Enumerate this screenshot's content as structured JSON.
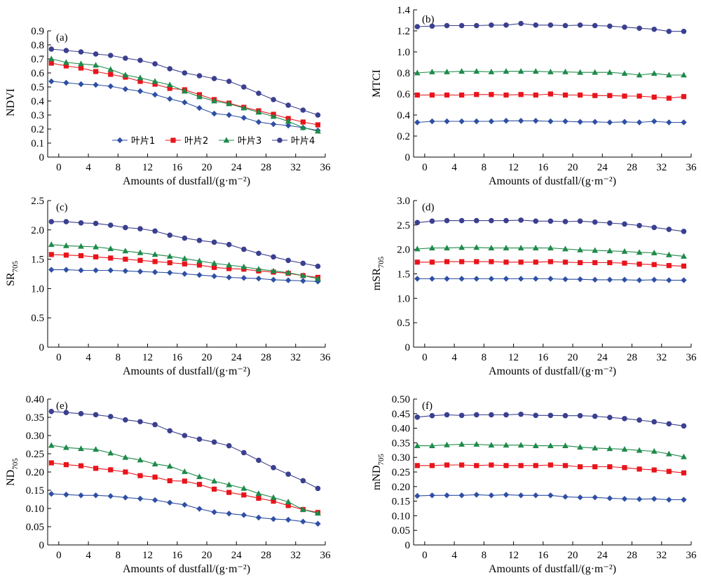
{
  "colors": {
    "叶片1": "#2e4fa3",
    "叶片2": "#e8141b",
    "叶片3": "#1e8a4a",
    "叶片4": "#3b3f8f"
  },
  "legend": [
    "叶片1",
    "叶片2",
    "叶片3",
    "叶片4"
  ],
  "chart_data": [
    {
      "id": "a",
      "panel_label": "(a)",
      "type": "line",
      "ylabel": "NDVI",
      "ylabel_sub": "",
      "xlabel": "Amounts of dustfall/(g·m⁻²)",
      "xlim": [
        -1.5,
        36
      ],
      "xticks": [
        0,
        4,
        8,
        12,
        16,
        20,
        24,
        28,
        32,
        36
      ],
      "ylim": [
        0,
        0.9
      ],
      "yticks": [
        0,
        0.1,
        0.2,
        0.3,
        0.4,
        0.5,
        0.6,
        0.7,
        0.8,
        0.9
      ],
      "ytick_labels": [
        "0",
        "0.1",
        "0.2",
        "0.3",
        "0.4",
        "0.5",
        "0.6",
        "0.7",
        "0.8",
        "0.9"
      ],
      "legend": true,
      "x": [
        -1,
        1,
        3,
        5,
        7,
        9,
        11,
        13,
        15,
        17,
        19,
        21,
        23,
        25,
        27,
        29,
        31,
        33,
        35
      ],
      "series": [
        {
          "name": "叶片1",
          "marker": "diamond",
          "values": [
            0.54,
            0.53,
            0.52,
            0.515,
            0.505,
            0.485,
            0.47,
            0.445,
            0.415,
            0.39,
            0.35,
            0.31,
            0.3,
            0.28,
            0.25,
            0.235,
            0.225,
            0.21,
            0.19
          ]
        },
        {
          "name": "叶片2",
          "marker": "square",
          "values": [
            0.67,
            0.65,
            0.635,
            0.61,
            0.59,
            0.57,
            0.54,
            0.52,
            0.49,
            0.48,
            0.445,
            0.41,
            0.385,
            0.355,
            0.33,
            0.305,
            0.275,
            0.25,
            0.23
          ]
        },
        {
          "name": "叶片3",
          "marker": "triangle",
          "values": [
            0.7,
            0.675,
            0.665,
            0.655,
            0.625,
            0.585,
            0.565,
            0.54,
            0.515,
            0.47,
            0.43,
            0.4,
            0.38,
            0.35,
            0.32,
            0.29,
            0.255,
            0.21,
            0.185
          ]
        },
        {
          "name": "叶片4",
          "marker": "circle",
          "values": [
            0.77,
            0.76,
            0.75,
            0.735,
            0.725,
            0.705,
            0.69,
            0.665,
            0.63,
            0.6,
            0.58,
            0.56,
            0.54,
            0.5,
            0.455,
            0.41,
            0.37,
            0.335,
            0.3
          ]
        }
      ]
    },
    {
      "id": "b",
      "panel_label": "(b)",
      "type": "line",
      "ylabel": "MTCI",
      "ylabel_sub": "",
      "xlabel": "Amounts of dustfall/(g·m⁻²)",
      "xlim": [
        -1.5,
        36
      ],
      "xticks": [
        0,
        4,
        8,
        12,
        16,
        20,
        24,
        28,
        32,
        36
      ],
      "ylim": [
        0,
        1.4
      ],
      "yticks": [
        0,
        0.2,
        0.4,
        0.6,
        0.8,
        1.0,
        1.2,
        1.4
      ],
      "ytick_labels": [
        "0",
        "0.2",
        "0.4",
        "0.6",
        "0.8",
        "1.0",
        "1.2",
        "1.4"
      ],
      "legend": false,
      "x": [
        -1,
        1,
        3,
        5,
        7,
        9,
        11,
        13,
        15,
        17,
        19,
        21,
        23,
        25,
        27,
        29,
        31,
        33,
        35
      ],
      "series": [
        {
          "name": "叶片1",
          "marker": "diamond",
          "values": [
            0.33,
            0.34,
            0.34,
            0.34,
            0.34,
            0.34,
            0.345,
            0.345,
            0.345,
            0.34,
            0.34,
            0.335,
            0.335,
            0.33,
            0.335,
            0.33,
            0.34,
            0.33,
            0.33
          ]
        },
        {
          "name": "叶片2",
          "marker": "square",
          "values": [
            0.59,
            0.59,
            0.59,
            0.59,
            0.595,
            0.595,
            0.59,
            0.595,
            0.59,
            0.6,
            0.59,
            0.59,
            0.585,
            0.585,
            0.58,
            0.58,
            0.57,
            0.56,
            0.575
          ]
        },
        {
          "name": "叶片3",
          "marker": "triangle",
          "values": [
            0.8,
            0.81,
            0.81,
            0.815,
            0.815,
            0.81,
            0.815,
            0.815,
            0.815,
            0.81,
            0.81,
            0.805,
            0.805,
            0.805,
            0.795,
            0.78,
            0.795,
            0.78,
            0.78
          ]
        },
        {
          "name": "叶片4",
          "marker": "circle",
          "values": [
            1.24,
            1.245,
            1.25,
            1.25,
            1.25,
            1.255,
            1.255,
            1.27,
            1.255,
            1.255,
            1.25,
            1.255,
            1.25,
            1.245,
            1.235,
            1.225,
            1.215,
            1.195,
            1.195
          ]
        }
      ]
    },
    {
      "id": "c",
      "panel_label": "(c)",
      "type": "line",
      "ylabel": "SR",
      "ylabel_sub": "705",
      "xlabel": "Amounts of dustfall/(g·m⁻²)",
      "xlim": [
        -1.5,
        36
      ],
      "xticks": [
        0,
        4,
        8,
        12,
        16,
        20,
        24,
        28,
        32,
        36
      ],
      "ylim": [
        0,
        2.5
      ],
      "yticks": [
        0,
        0.5,
        1.0,
        1.5,
        2.0,
        2.5
      ],
      "ytick_labels": [
        "0",
        "0.5",
        "1.0",
        "1.5",
        "2.0",
        "2.5"
      ],
      "legend": false,
      "x": [
        -1,
        1,
        3,
        5,
        7,
        9,
        11,
        13,
        15,
        17,
        19,
        21,
        23,
        25,
        27,
        29,
        31,
        33,
        35
      ],
      "series": [
        {
          "name": "叶片1",
          "marker": "diamond",
          "values": [
            1.32,
            1.32,
            1.31,
            1.31,
            1.31,
            1.3,
            1.29,
            1.28,
            1.27,
            1.25,
            1.23,
            1.21,
            1.19,
            1.18,
            1.17,
            1.15,
            1.14,
            1.13,
            1.12
          ]
        },
        {
          "name": "叶片2",
          "marker": "square",
          "values": [
            1.58,
            1.57,
            1.56,
            1.54,
            1.52,
            1.5,
            1.48,
            1.46,
            1.44,
            1.42,
            1.4,
            1.36,
            1.34,
            1.33,
            1.3,
            1.28,
            1.26,
            1.22,
            1.19
          ]
        },
        {
          "name": "叶片3",
          "marker": "triangle",
          "values": [
            1.75,
            1.73,
            1.72,
            1.71,
            1.68,
            1.64,
            1.61,
            1.58,
            1.55,
            1.51,
            1.47,
            1.43,
            1.4,
            1.37,
            1.33,
            1.3,
            1.27,
            1.22,
            1.17
          ]
        },
        {
          "name": "叶片4",
          "marker": "circle",
          "values": [
            2.14,
            2.14,
            2.12,
            2.11,
            2.08,
            2.04,
            2.02,
            1.98,
            1.91,
            1.86,
            1.82,
            1.79,
            1.75,
            1.67,
            1.6,
            1.54,
            1.48,
            1.43,
            1.38
          ]
        }
      ]
    },
    {
      "id": "d",
      "panel_label": "(d)",
      "type": "line",
      "ylabel": "mSR",
      "ylabel_sub": "705",
      "xlabel": "Amounts of dustfall/(g·m⁻²)",
      "xlim": [
        -1.5,
        36
      ],
      "xticks": [
        0,
        4,
        8,
        12,
        16,
        20,
        24,
        28,
        32,
        36
      ],
      "ylim": [
        0,
        3.0
      ],
      "yticks": [
        0,
        0.5,
        1.0,
        1.5,
        2.0,
        2.5,
        3.0
      ],
      "ytick_labels": [
        "0",
        "0.5",
        "1.0",
        "1.5",
        "2.0",
        "2.5",
        "3.0"
      ],
      "legend": false,
      "x": [
        -1,
        1,
        3,
        5,
        7,
        9,
        11,
        13,
        15,
        17,
        19,
        21,
        23,
        25,
        27,
        29,
        31,
        33,
        35
      ],
      "series": [
        {
          "name": "叶片1",
          "marker": "diamond",
          "values": [
            1.4,
            1.4,
            1.4,
            1.4,
            1.4,
            1.4,
            1.4,
            1.4,
            1.4,
            1.4,
            1.39,
            1.39,
            1.38,
            1.38,
            1.38,
            1.37,
            1.38,
            1.37,
            1.37
          ]
        },
        {
          "name": "叶片2",
          "marker": "square",
          "values": [
            1.74,
            1.74,
            1.75,
            1.75,
            1.75,
            1.75,
            1.74,
            1.74,
            1.74,
            1.75,
            1.74,
            1.73,
            1.73,
            1.73,
            1.72,
            1.7,
            1.69,
            1.67,
            1.66
          ]
        },
        {
          "name": "叶片3",
          "marker": "triangle",
          "values": [
            2.01,
            2.03,
            2.03,
            2.04,
            2.04,
            2.03,
            2.03,
            2.03,
            2.03,
            2.03,
            2.01,
            1.99,
            1.98,
            1.97,
            1.96,
            1.94,
            1.93,
            1.89,
            1.86
          ]
        },
        {
          "name": "叶片4",
          "marker": "circle",
          "values": [
            2.55,
            2.58,
            2.59,
            2.59,
            2.59,
            2.59,
            2.59,
            2.6,
            2.58,
            2.58,
            2.57,
            2.58,
            2.56,
            2.54,
            2.52,
            2.49,
            2.45,
            2.41,
            2.37
          ]
        }
      ]
    },
    {
      "id": "e",
      "panel_label": "(e)",
      "type": "line",
      "ylabel": "ND",
      "ylabel_sub": "705",
      "xlabel": "Amounts of dustfall/(g·m⁻²)",
      "xlim": [
        -1.5,
        36
      ],
      "xticks": [
        0,
        4,
        8,
        12,
        16,
        20,
        24,
        28,
        32,
        36
      ],
      "ylim": [
        0,
        0.4
      ],
      "yticks": [
        0,
        0.05,
        0.1,
        0.15,
        0.2,
        0.25,
        0.3,
        0.35,
        0.4
      ],
      "ytick_labels": [
        "0",
        "0.05",
        "0.10",
        "0.15",
        "0.20",
        "0.25",
        "0.30",
        "0.35",
        "0.40"
      ],
      "legend": false,
      "x": [
        -1,
        1,
        3,
        5,
        7,
        9,
        11,
        13,
        15,
        17,
        19,
        21,
        23,
        25,
        27,
        29,
        31,
        33,
        35
      ],
      "series": [
        {
          "name": "叶片1",
          "marker": "diamond",
          "values": [
            0.14,
            0.138,
            0.136,
            0.136,
            0.134,
            0.13,
            0.127,
            0.123,
            0.116,
            0.11,
            0.099,
            0.09,
            0.086,
            0.082,
            0.075,
            0.071,
            0.069,
            0.064,
            0.058
          ]
        },
        {
          "name": "叶片2",
          "marker": "square",
          "values": [
            0.225,
            0.22,
            0.217,
            0.21,
            0.206,
            0.2,
            0.19,
            0.186,
            0.176,
            0.175,
            0.166,
            0.153,
            0.144,
            0.137,
            0.128,
            0.12,
            0.108,
            0.097,
            0.089
          ]
        },
        {
          "name": "叶片3",
          "marker": "triangle",
          "values": [
            0.273,
            0.267,
            0.264,
            0.262,
            0.252,
            0.24,
            0.233,
            0.222,
            0.216,
            0.201,
            0.187,
            0.175,
            0.165,
            0.155,
            0.141,
            0.13,
            0.118,
            0.097,
            0.087
          ]
        },
        {
          "name": "叶片4",
          "marker": "circle",
          "values": [
            0.366,
            0.363,
            0.36,
            0.357,
            0.352,
            0.343,
            0.338,
            0.33,
            0.313,
            0.3,
            0.29,
            0.282,
            0.272,
            0.253,
            0.232,
            0.212,
            0.194,
            0.176,
            0.155
          ]
        }
      ]
    },
    {
      "id": "f",
      "panel_label": "(f)",
      "type": "line",
      "ylabel": "mND",
      "ylabel_sub": "705",
      "xlabel": "Amounts of dustfall/(g·m⁻²)",
      "xlim": [
        -1.5,
        36
      ],
      "xticks": [
        0,
        4,
        8,
        12,
        16,
        20,
        24,
        28,
        32,
        36
      ],
      "ylim": [
        0,
        0.5
      ],
      "yticks": [
        0,
        0.05,
        0.1,
        0.15,
        0.2,
        0.25,
        0.3,
        0.35,
        0.4,
        0.45,
        0.5
      ],
      "ytick_labels": [
        "0",
        "0.05",
        "0.10",
        "0.15",
        "0.20",
        "0.25",
        "0.30",
        "0.35",
        "0.40",
        "0.45",
        "0.50"
      ],
      "legend": false,
      "x": [
        -1,
        1,
        3,
        5,
        7,
        9,
        11,
        13,
        15,
        17,
        19,
        21,
        23,
        25,
        27,
        29,
        31,
        33,
        35
      ],
      "series": [
        {
          "name": "叶片1",
          "marker": "diamond",
          "values": [
            0.168,
            0.17,
            0.17,
            0.17,
            0.172,
            0.17,
            0.172,
            0.17,
            0.17,
            0.17,
            0.165,
            0.163,
            0.163,
            0.16,
            0.158,
            0.157,
            0.158,
            0.155,
            0.155
          ]
        },
        {
          "name": "叶片2",
          "marker": "square",
          "values": [
            0.272,
            0.272,
            0.274,
            0.274,
            0.272,
            0.274,
            0.272,
            0.272,
            0.272,
            0.274,
            0.272,
            0.268,
            0.268,
            0.268,
            0.265,
            0.26,
            0.257,
            0.252,
            0.247
          ]
        },
        {
          "name": "叶片3",
          "marker": "triangle",
          "values": [
            0.34,
            0.34,
            0.343,
            0.345,
            0.345,
            0.342,
            0.342,
            0.342,
            0.34,
            0.34,
            0.34,
            0.335,
            0.332,
            0.33,
            0.328,
            0.324,
            0.321,
            0.312,
            0.302
          ]
        },
        {
          "name": "叶片4",
          "marker": "circle",
          "values": [
            0.438,
            0.443,
            0.446,
            0.444,
            0.446,
            0.446,
            0.446,
            0.448,
            0.444,
            0.444,
            0.443,
            0.443,
            0.441,
            0.437,
            0.433,
            0.428,
            0.422,
            0.415,
            0.408
          ]
        }
      ]
    }
  ]
}
